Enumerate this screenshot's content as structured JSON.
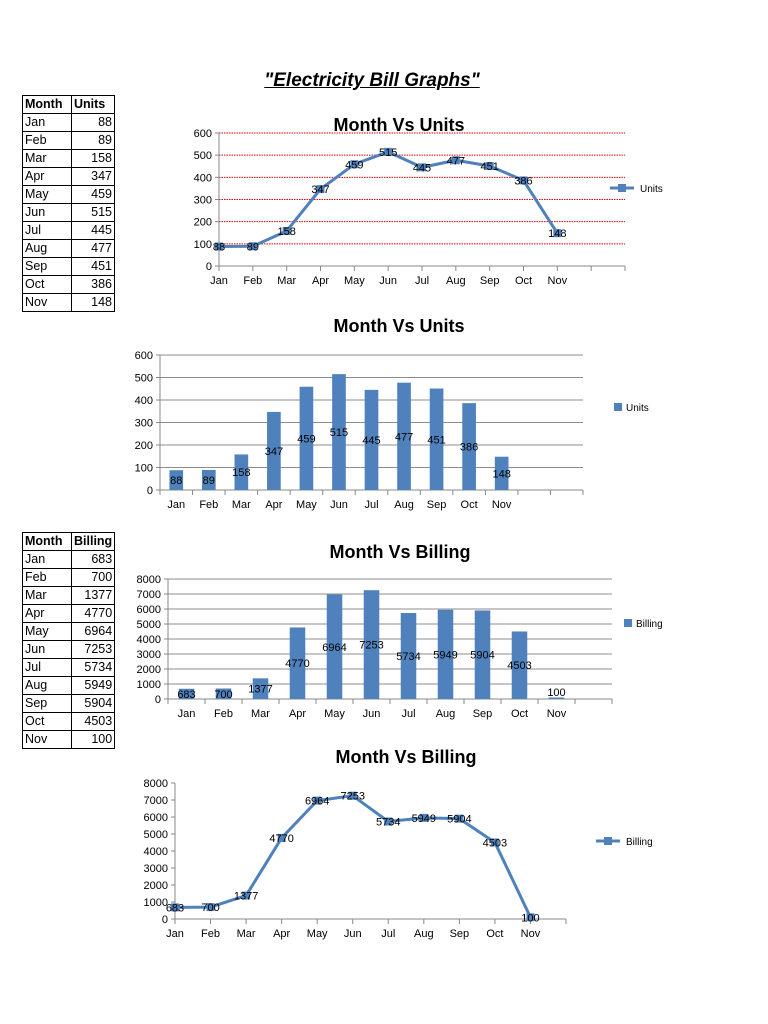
{
  "title": "\"Electricity Bill Graphs\"",
  "tables": [
    {
      "headers": [
        "Month",
        "Units"
      ],
      "rows": [
        [
          "Jan",
          "88"
        ],
        [
          "Feb",
          "89"
        ],
        [
          "Mar",
          "158"
        ],
        [
          "Apr",
          "347"
        ],
        [
          "May",
          "459"
        ],
        [
          "Jun",
          "515"
        ],
        [
          "Jul",
          "445"
        ],
        [
          "Aug",
          "477"
        ],
        [
          "Sep",
          "451"
        ],
        [
          "Oct",
          "386"
        ],
        [
          "Nov",
          "148"
        ]
      ]
    },
    {
      "headers": [
        "Month",
        "Billing"
      ],
      "rows": [
        [
          "Jan",
          "683"
        ],
        [
          "Feb",
          "700"
        ],
        [
          "Mar",
          "1377"
        ],
        [
          "Apr",
          "4770"
        ],
        [
          "May",
          "6964"
        ],
        [
          "Jun",
          "7253"
        ],
        [
          "Jul",
          "5734"
        ],
        [
          "Aug",
          "5949"
        ],
        [
          "Sep",
          "5904"
        ],
        [
          "Oct",
          "4503"
        ],
        [
          "Nov",
          "100"
        ]
      ]
    }
  ],
  "chart_data": [
    {
      "type": "line",
      "title": "Month Vs Units",
      "categories": [
        "Jan",
        "Feb",
        "Mar",
        "Apr",
        "May",
        "Jun",
        "Jul",
        "Aug",
        "Sep",
        "Oct",
        "Nov"
      ],
      "series": [
        {
          "name": "Units",
          "values": [
            88,
            89,
            158,
            347,
            459,
            515,
            445,
            477,
            451,
            386,
            148
          ]
        }
      ],
      "ylim": [
        0,
        600
      ],
      "yticks": [
        0,
        100,
        200,
        300,
        400,
        500,
        600
      ],
      "grid": true,
      "grid_style": "red dotted",
      "legend": "right",
      "data_labels": true,
      "color": "#4F81BD",
      "grid_color": "#E00000"
    },
    {
      "type": "bar",
      "title": "Month Vs Units",
      "categories": [
        "Jan",
        "Feb",
        "Mar",
        "Apr",
        "May",
        "Jun",
        "Jul",
        "Aug",
        "Sep",
        "Oct",
        "Nov"
      ],
      "series": [
        {
          "name": "Units",
          "values": [
            88,
            89,
            158,
            347,
            459,
            515,
            445,
            477,
            451,
            386,
            148
          ]
        }
      ],
      "ylim": [
        0,
        600
      ],
      "yticks": [
        0,
        100,
        200,
        300,
        400,
        500,
        600
      ],
      "grid": true,
      "legend": "right",
      "data_labels": true,
      "color": "#4F81BD",
      "grid_color": "#8C8C8C"
    },
    {
      "type": "bar",
      "title": "Month Vs Billing",
      "categories": [
        "Jan",
        "Feb",
        "Mar",
        "Apr",
        "May",
        "Jun",
        "Jul",
        "Aug",
        "Sep",
        "Oct",
        "Nov"
      ],
      "series": [
        {
          "name": "Billing",
          "values": [
            683,
            700,
            1377,
            4770,
            6964,
            7253,
            5734,
            5949,
            5904,
            4503,
            100
          ]
        }
      ],
      "ylim": [
        0,
        8000
      ],
      "yticks": [
        0,
        1000,
        2000,
        3000,
        4000,
        5000,
        6000,
        7000,
        8000
      ],
      "grid": true,
      "legend": "right",
      "data_labels": true,
      "color": "#4F81BD",
      "grid_color": "#8C8C8C"
    },
    {
      "type": "line",
      "title": "Month Vs Billing",
      "categories": [
        "Jan",
        "Feb",
        "Mar",
        "Apr",
        "May",
        "Jun",
        "Jul",
        "Aug",
        "Sep",
        "Oct",
        "Nov"
      ],
      "series": [
        {
          "name": "Billing",
          "values": [
            683,
            700,
            1377,
            4770,
            6964,
            7253,
            5734,
            5949,
            5904,
            4503,
            100
          ]
        }
      ],
      "ylim": [
        0,
        8000
      ],
      "yticks": [
        0,
        1000,
        2000,
        3000,
        4000,
        5000,
        6000,
        7000,
        8000
      ],
      "grid": false,
      "legend": "right",
      "data_labels": true,
      "color": "#4F81BD"
    }
  ]
}
